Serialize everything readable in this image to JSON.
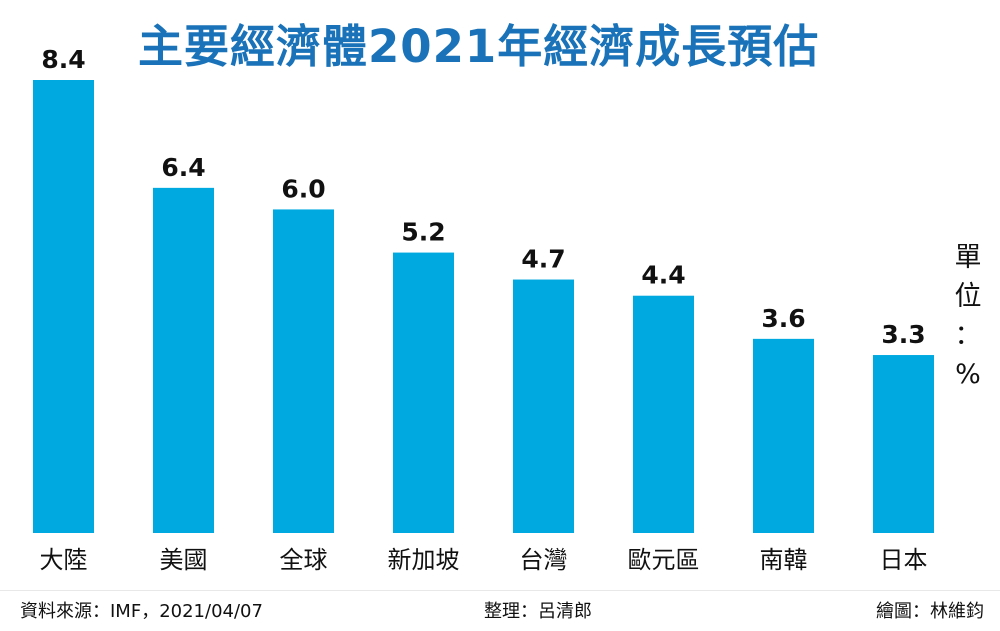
{
  "title": "主要經濟體2021年經濟成長預估",
  "unit": {
    "chars": [
      "單",
      "位",
      "：",
      "%"
    ]
  },
  "footer": {
    "source": "資料來源：IMF，2021/04/07",
    "organized": "整理：呂清郎",
    "drawn": "繪圖：林維鈞"
  },
  "colors": {
    "bar": "#00a9e0",
    "title": "#1a73b8",
    "text": "#111111"
  },
  "chart_data": {
    "type": "bar",
    "title": "主要經濟體2021年經濟成長預估",
    "categories": [
      "大陸",
      "美國",
      "全球",
      "新加坡",
      "台灣",
      "歐元區",
      "南韓",
      "日本"
    ],
    "values": [
      8.4,
      6.4,
      6.0,
      5.2,
      4.7,
      4.4,
      3.6,
      3.3
    ],
    "value_labels": [
      "8.4",
      "6.4",
      "6.0",
      "5.2",
      "4.7",
      "4.4",
      "3.6",
      "3.3"
    ],
    "xlabel": "",
    "ylabel": "單位：%",
    "ylim": [
      0,
      8.4
    ],
    "grid": false,
    "legend": "none"
  }
}
